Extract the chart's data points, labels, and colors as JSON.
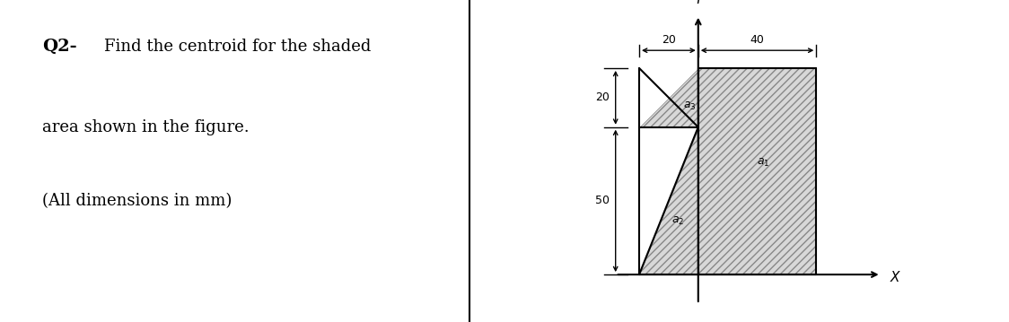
{
  "bg_color": "#ffffff",
  "text_color": "#000000",
  "line_color": "#000000",
  "title_bold": "Q2-",
  "title_rest": " Find the centroid for the shaded",
  "title_line2": "area shown in the figure.",
  "title_line3": "(All dimensions in mm)",
  "dim_20_horiz": "20",
  "dim_40": "40",
  "dim_20_vert": "20",
  "dim_50": "50",
  "label_a1": "$a_1$",
  "label_a2": "$a_2$",
  "label_a3": "$a_3$",
  "label_x": "X",
  "label_y": "Y",
  "hatch_pattern": "////",
  "hatch_facecolor": "#d8d8d8",
  "hatch_edgecolor": "#888888"
}
